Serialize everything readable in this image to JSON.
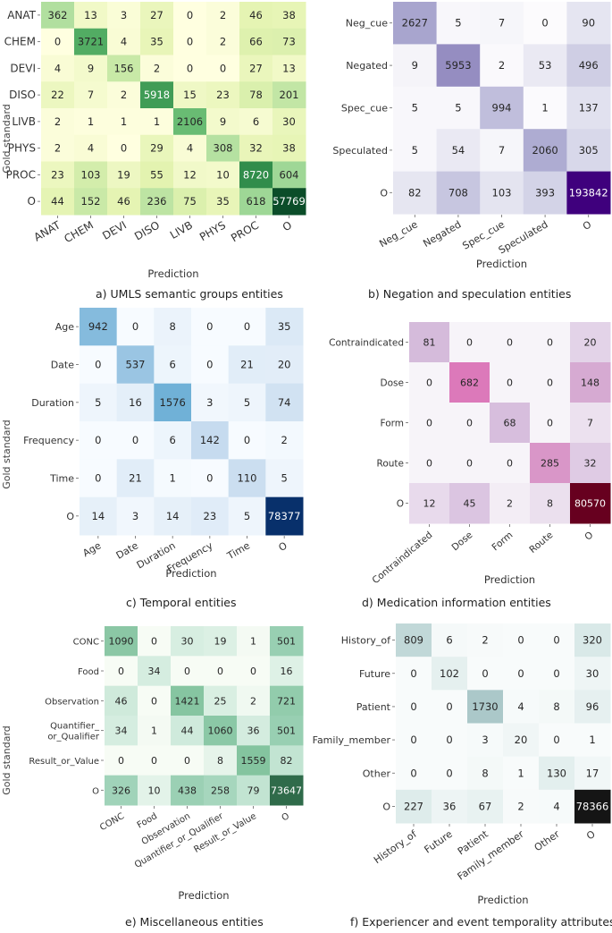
{
  "y_axis_label": "Gold standard",
  "chart_data": [
    {
      "type": "heatmap",
      "id": "a",
      "caption": "a) UMLS semantic groups entities",
      "xlabel": "Prediction",
      "ylabel": "Gold standard",
      "row_labels": [
        "ANAT",
        "CHEM",
        "DEVI",
        "DISO",
        "LIVB",
        "PHYS",
        "PROC",
        "O"
      ],
      "col_labels": [
        "ANAT",
        "CHEM",
        "DEVI",
        "DISO",
        "LIVB",
        "PHYS",
        "PROC",
        "O"
      ],
      "colormap": [
        "#ffffe0",
        "#e3f3b0",
        "#a8dc9c",
        "#5bb56a",
        "#1f7c3e",
        "#0b4d29"
      ],
      "values": [
        [
          362,
          13,
          3,
          27,
          0,
          2,
          46,
          38
        ],
        [
          0,
          3721,
          4,
          35,
          0,
          2,
          66,
          73
        ],
        [
          4,
          9,
          156,
          2,
          0,
          0,
          27,
          13
        ],
        [
          22,
          7,
          2,
          5918,
          15,
          23,
          78,
          201
        ],
        [
          2,
          1,
          1,
          1,
          2106,
          9,
          6,
          30
        ],
        [
          2,
          4,
          0,
          29,
          4,
          308,
          32,
          38
        ],
        [
          23,
          103,
          19,
          55,
          12,
          10,
          8720,
          604
        ],
        [
          44,
          152,
          46,
          236,
          75,
          35,
          618,
          57769
        ]
      ]
    },
    {
      "type": "heatmap",
      "id": "b",
      "caption": "b) Negation and speculation entities",
      "xlabel": "Prediction",
      "ylabel": "",
      "row_labels": [
        "Neg_cue",
        "Negated",
        "Spec_cue",
        "Speculated",
        "O"
      ],
      "col_labels": [
        "Neg_cue",
        "Negated",
        "Spec_cue",
        "Speculated",
        "O"
      ],
      "colormap": [
        "#fcfbfd",
        "#dadaeb",
        "#9e9ac8",
        "#6a51a3",
        "#3f007d"
      ],
      "values": [
        [
          2627,
          5,
          7,
          0,
          90
        ],
        [
          9,
          5953,
          2,
          53,
          496
        ],
        [
          5,
          5,
          994,
          1,
          137
        ],
        [
          5,
          54,
          7,
          2060,
          305
        ],
        [
          82,
          708,
          103,
          393,
          193842
        ]
      ]
    },
    {
      "type": "heatmap",
      "id": "c",
      "caption": "c) Temporal entities",
      "xlabel": "Prediction",
      "ylabel": "Gold standard",
      "row_labels": [
        "Age",
        "Date",
        "Duration",
        "Frequency",
        "Time",
        "O"
      ],
      "col_labels": [
        "Age",
        "Date",
        "Duration",
        "Frequency",
        "Time",
        "O"
      ],
      "colormap": [
        "#f7fbff",
        "#c6dbef",
        "#6baed6",
        "#2171b5",
        "#08306b"
      ],
      "values": [
        [
          942,
          0,
          8,
          0,
          0,
          35
        ],
        [
          0,
          537,
          6,
          0,
          21,
          20
        ],
        [
          5,
          16,
          1576,
          3,
          5,
          74
        ],
        [
          0,
          0,
          6,
          142,
          0,
          2
        ],
        [
          0,
          21,
          1,
          0,
          110,
          5
        ],
        [
          14,
          3,
          14,
          23,
          5,
          78377
        ]
      ]
    },
    {
      "type": "heatmap",
      "id": "d",
      "caption": "d) Medication information entities",
      "xlabel": "Prediction",
      "ylabel": "",
      "row_labels": [
        "Contraindicated",
        "Dose",
        "Form",
        "Route",
        "O"
      ],
      "col_labels": [
        "Contraindicated",
        "Dose",
        "Form",
        "Route",
        "O"
      ],
      "colormap": [
        "#f7f4f9",
        "#d4b9da",
        "#df65b0",
        "#ce1256",
        "#67001f"
      ],
      "values": [
        [
          81,
          0,
          0,
          0,
          20
        ],
        [
          0,
          682,
          0,
          0,
          148
        ],
        [
          0,
          0,
          68,
          0,
          7
        ],
        [
          0,
          0,
          0,
          285,
          32
        ],
        [
          12,
          45,
          2,
          8,
          80570
        ]
      ]
    },
    {
      "type": "heatmap",
      "id": "e",
      "caption": "e) Miscellaneous entities",
      "xlabel": "Prediction",
      "ylabel": "Gold standard",
      "row_labels": [
        "CONC",
        "Food",
        "Observation",
        "Quantifier_\nor_Qualifier",
        "Result_or_Value",
        "O"
      ],
      "col_labels": [
        "CONC",
        "Food",
        "Observation",
        "Quantifier_or_Qualifier",
        "Result_or_Value",
        "O"
      ],
      "colormap": [
        "#f7fcf5",
        "#d5ede0",
        "#9fd3b8",
        "#7cbf98",
        "#4f8d6a",
        "#2f6b4a"
      ],
      "values": [
        [
          1090,
          0,
          30,
          19,
          1,
          501
        ],
        [
          0,
          34,
          0,
          0,
          0,
          16
        ],
        [
          46,
          0,
          1421,
          25,
          2,
          721
        ],
        [
          34,
          1,
          44,
          1060,
          36,
          501
        ],
        [
          0,
          0,
          0,
          8,
          1559,
          82
        ],
        [
          326,
          10,
          438,
          258,
          79,
          73647
        ]
      ]
    },
    {
      "type": "heatmap",
      "id": "f",
      "caption": "f) Experiencer and event temporality attributes",
      "xlabel": "Prediction",
      "ylabel": "",
      "row_labels": [
        "History_of",
        "Future",
        "Patient",
        "Family_member",
        "Other",
        "O"
      ],
      "col_labels": [
        "History_of",
        "Future",
        "Patient",
        "Family_member",
        "Other",
        "O"
      ],
      "colormap": [
        "#f8fbfb",
        "#dcebea",
        "#9bbcbe",
        "#4d6e74",
        "#151515"
      ],
      "values": [
        [
          809,
          6,
          2,
          0,
          0,
          320
        ],
        [
          0,
          102,
          0,
          0,
          0,
          30
        ],
        [
          0,
          0,
          1730,
          4,
          8,
          96
        ],
        [
          0,
          0,
          3,
          20,
          0,
          1
        ],
        [
          0,
          0,
          8,
          1,
          130,
          17
        ],
        [
          227,
          36,
          67,
          2,
          4,
          78366
        ]
      ]
    }
  ]
}
